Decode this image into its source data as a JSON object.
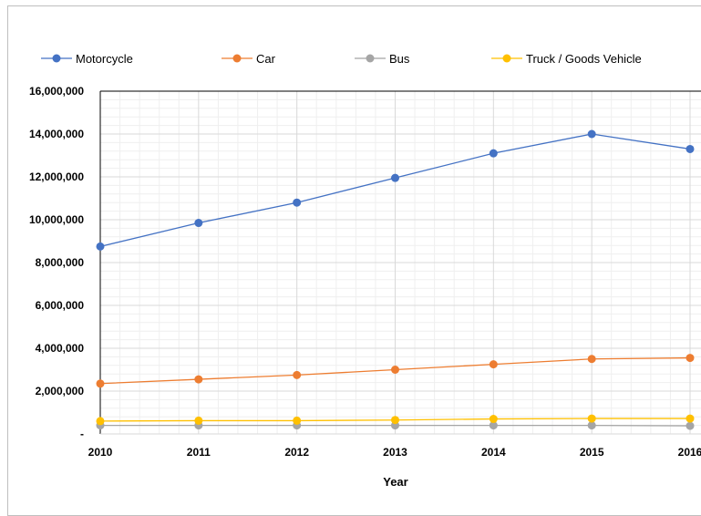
{
  "chart_data": {
    "type": "line",
    "x": [
      2010,
      2011,
      2012,
      2013,
      2014,
      2015,
      2016
    ],
    "x_tick_labels": [
      "2010",
      "2011",
      "2012",
      "2013",
      "2014",
      "2015",
      "2016"
    ],
    "xlabel": "Year",
    "ylabel": "",
    "ylim": [
      0,
      16000000
    ],
    "y_tick_labels": [
      "-",
      "2,000,000",
      "4,000,000",
      "6,000,000",
      "8,000,000",
      "10,000,000",
      "12,000,000",
      "14,000,000",
      "16,000,000"
    ],
    "y_ticks": [
      0,
      2000000,
      4000000,
      6000000,
      8000000,
      10000000,
      12000000,
      14000000,
      16000000
    ],
    "grid": true,
    "legend_position": "top",
    "series": [
      {
        "name": "Motorcycle",
        "color": "#4472C4",
        "values": [
          8750000,
          9850000,
          10800000,
          11950000,
          13100000,
          14000000,
          13300000
        ]
      },
      {
        "name": "Car",
        "color": "#ED7D31",
        "values": [
          2350000,
          2550000,
          2750000,
          3000000,
          3250000,
          3500000,
          3550000
        ]
      },
      {
        "name": "Bus",
        "color": "#A5A5A5",
        "values": [
          400000,
          400000,
          400000,
          400000,
          400000,
          400000,
          380000
        ]
      },
      {
        "name": "Truck / Goods Vehicle",
        "color": "#FFC000",
        "values": [
          600000,
          620000,
          620000,
          650000,
          700000,
          720000,
          720000
        ]
      }
    ]
  }
}
